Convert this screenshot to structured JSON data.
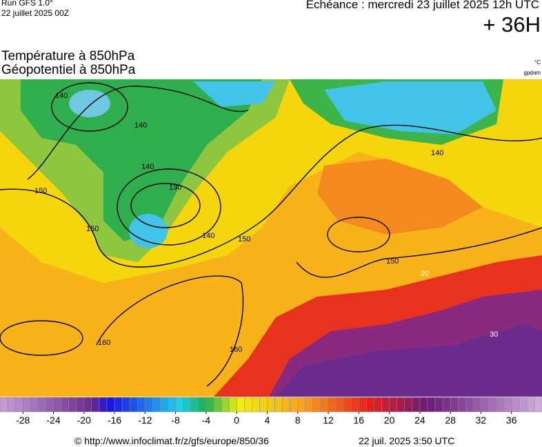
{
  "header": {
    "run": "Run GFS 1.0°",
    "run_date": "22 juillet 2025 00Z",
    "valid": "Echéance : mercredi 23 juillet 2025 12h UTC",
    "lead": "+ 36H"
  },
  "titles": {
    "temperature": "Température à 850hPa",
    "geopotential": "Géopotentiel à 850hPa",
    "temp_unit": "°C",
    "geo_unit": "gpdam"
  },
  "map": {
    "contour_labels": [
      "140",
      "140",
      "140",
      "130",
      "140",
      "150",
      "150",
      "150",
      "150",
      "160",
      "160",
      "140",
      "20",
      "30"
    ]
  },
  "colorbar": {
    "lim": [
      -31,
      40
    ],
    "ticks": [
      -28,
      -24,
      -20,
      -16,
      -12,
      -8,
      -4,
      0,
      4,
      8,
      12,
      16,
      20,
      24,
      28,
      32,
      36
    ]
  },
  "footer": {
    "url": "© http://www.infoclimat.fr/z/gfs/europe/850/36",
    "timestamp": "22 juil. 2025  3:50 UTC"
  }
}
